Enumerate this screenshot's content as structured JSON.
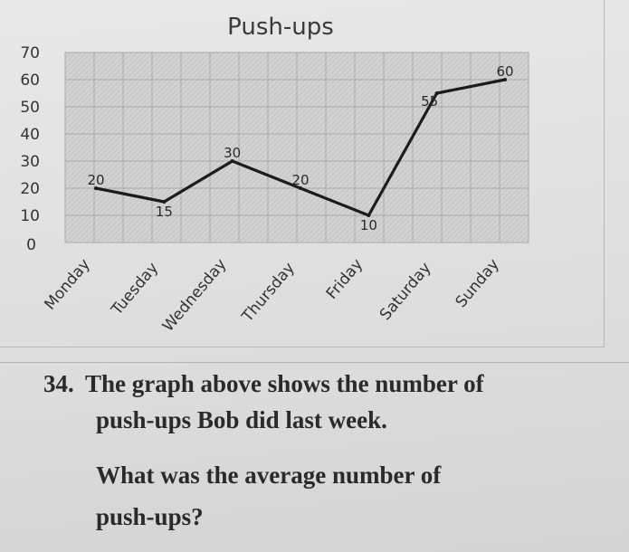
{
  "question": {
    "number": "34.",
    "line1": "The graph above shows the number of",
    "line2": "push-ups Bob did last week.",
    "prompt_line1": "What was the average number of",
    "prompt_line2": "push-ups?"
  },
  "chart_data": {
    "type": "line",
    "title": "Push-ups",
    "categories": [
      "Monday",
      "Tuesday",
      "Wednesday",
      "Thursday",
      "Friday",
      "Saturday",
      "Sunday"
    ],
    "series": [
      {
        "values": [
          20,
          15,
          30,
          20,
          10,
          55,
          60
        ]
      }
    ],
    "data_labels": [
      "20",
      "15",
      "30",
      "20",
      "10",
      "55",
      "60"
    ],
    "y_ticks": [
      "0",
      "10",
      "20",
      "30",
      "40",
      "50",
      "60",
      "70"
    ],
    "ylim": [
      0,
      70
    ],
    "grid": true,
    "line_color": "#1c1c1c",
    "plot_background": "#cfcfcf"
  }
}
